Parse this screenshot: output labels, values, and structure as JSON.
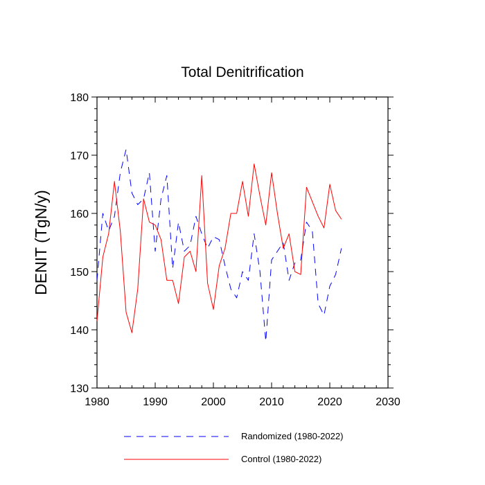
{
  "chart_data": {
    "type": "line",
    "title": "Total Denitrification",
    "xlabel": "",
    "ylabel": "DENIT  (TgN/y)",
    "xlim": [
      1980,
      2030
    ],
    "ylim": [
      130,
      180
    ],
    "x_ticks": [
      1980,
      1990,
      2000,
      2010,
      2020,
      2030
    ],
    "y_ticks": [
      130,
      140,
      150,
      160,
      170,
      180
    ],
    "x_tick_labels": [
      "1980",
      "1990",
      "2000",
      "2010",
      "2020",
      "2030"
    ],
    "y_tick_labels": [
      "130",
      "140",
      "150",
      "160",
      "170",
      "180"
    ],
    "grid": false,
    "legend_position": "bottom",
    "x": [
      1980,
      1981,
      1982,
      1983,
      1984,
      1985,
      1986,
      1987,
      1988,
      1989,
      1990,
      1991,
      1992,
      1993,
      1994,
      1995,
      1996,
      1997,
      1998,
      1999,
      2000,
      2001,
      2002,
      2003,
      2004,
      2005,
      2006,
      2007,
      2008,
      2009,
      2010,
      2011,
      2012,
      2013,
      2014,
      2015,
      2016,
      2017,
      2018,
      2019,
      2020,
      2021,
      2022
    ],
    "series": [
      {
        "name": "Randomized (1980-2022)",
        "color": "#0000ff",
        "dash": "dashed",
        "values": [
          148.5,
          160.0,
          157.0,
          159.5,
          167.0,
          171.0,
          163.5,
          161.5,
          162.5,
          167.0,
          153.5,
          162.5,
          166.5,
          150.5,
          158.5,
          153.5,
          154.5,
          159.5,
          156.5,
          154.0,
          156.0,
          155.5,
          151.0,
          147.0,
          145.5,
          150.0,
          148.5,
          156.5,
          150.0,
          138.0,
          152.0,
          153.5,
          155.0,
          148.5,
          151.5,
          152.0,
          158.5,
          157.0,
          144.5,
          142.5,
          147.5,
          149.5,
          154.0
        ]
      },
      {
        "name": "Control (1980-2022)",
        "color": "#ff0000",
        "dash": "solid",
        "values": [
          141.5,
          152.5,
          156.5,
          165.5,
          157.0,
          143.0,
          139.5,
          147.0,
          162.5,
          158.5,
          158.0,
          155.5,
          148.5,
          148.5,
          144.5,
          152.5,
          153.5,
          150.0,
          166.5,
          148.0,
          143.5,
          151.0,
          154.0,
          160.0,
          160.0,
          165.5,
          159.5,
          168.5,
          163.0,
          158.0,
          167.0,
          160.0,
          154.0,
          156.5,
          150.0,
          149.5,
          164.5,
          162.0,
          159.5,
          157.5,
          165.0,
          160.5,
          159.0
        ]
      }
    ]
  }
}
